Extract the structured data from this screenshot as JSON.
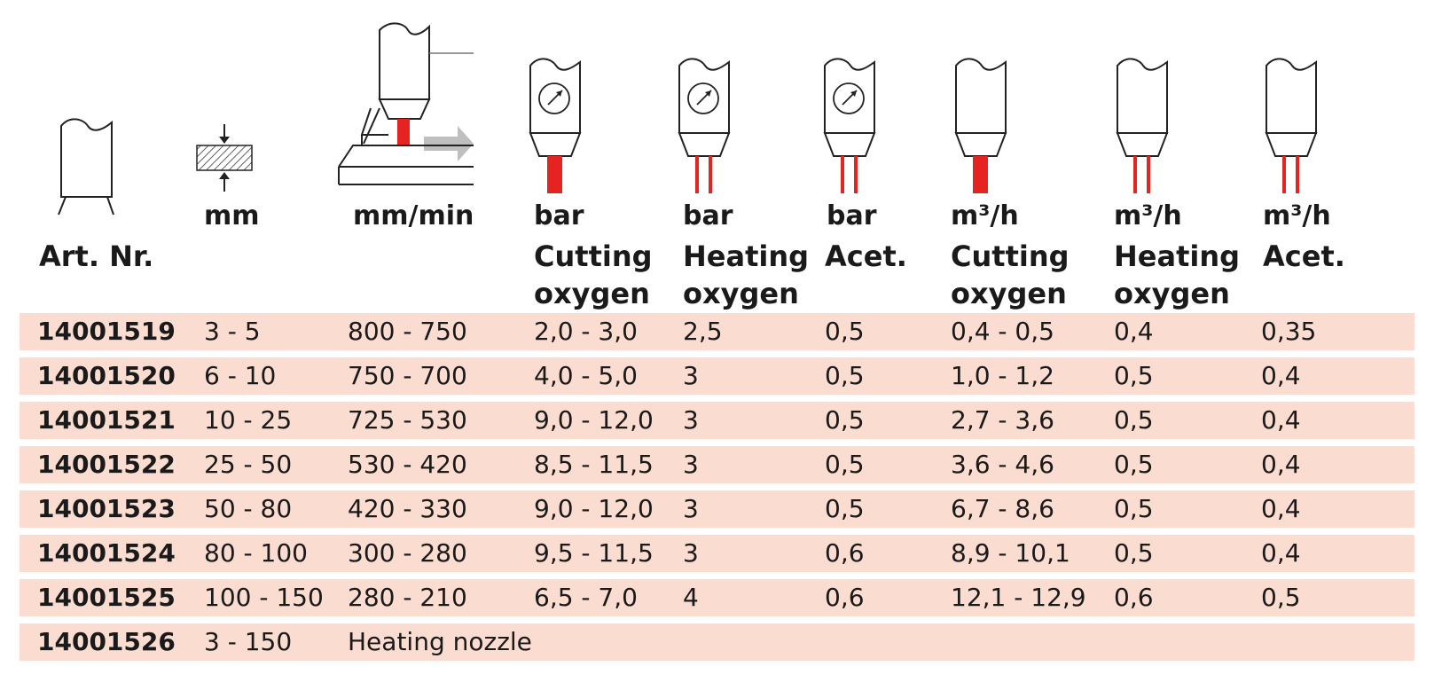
{
  "headers": {
    "thickness_unit": "mm",
    "speed_unit": "mm/min",
    "cutting_oxygen_bar": {
      "unit": "bar",
      "label_1": "Cutting",
      "label_2": "oxygen"
    },
    "heating_oxygen_bar": {
      "unit": "bar",
      "label_1": "Heating",
      "label_2": "oxygen"
    },
    "acetylene_bar": {
      "unit": "bar",
      "label_1": "Acet."
    },
    "cutting_oxygen_flow": {
      "unit": "m³/h",
      "label_1": "Cutting",
      "label_2": "oxygen"
    },
    "heating_oxygen_flow": {
      "unit": "m³/h",
      "label_1": "Heating",
      "label_2": "oxygen"
    },
    "acetylene_flow": {
      "unit": "m³/h",
      "label_1": "Acet."
    },
    "art_nr": "Art. Nr."
  },
  "icons": {
    "nozzle": "nozzle-icon",
    "thickness": "material-thickness-icon",
    "speed": "cutting-speed-icon",
    "gauge": "pressure-gauge-icon",
    "flame_color": "#e52421",
    "row_color": "#fbdcd0"
  },
  "rows": [
    {
      "art": "14001519",
      "thickness": "3 - 5",
      "speed": "800 - 750",
      "cut_bar": "2,0 - 3,0",
      "heat_bar": "2,5",
      "acet_bar": "0,5",
      "cut_flow": "0,4 - 0,5",
      "heat_flow": "0,4",
      "acet_flow": "0,35"
    },
    {
      "art": "14001520",
      "thickness": "6 - 10",
      "speed": "750 - 700",
      "cut_bar": "4,0 - 5,0",
      "heat_bar": "3",
      "acet_bar": "0,5",
      "cut_flow": "1,0 - 1,2",
      "heat_flow": "0,5",
      "acet_flow": "0,4"
    },
    {
      "art": "14001521",
      "thickness": "10 - 25",
      "speed": "725 - 530",
      "cut_bar": "9,0 - 12,0",
      "heat_bar": "3",
      "acet_bar": "0,5",
      "cut_flow": "2,7 - 3,6",
      "heat_flow": "0,5",
      "acet_flow": "0,4"
    },
    {
      "art": "14001522",
      "thickness": "25 - 50",
      "speed": "530 - 420",
      "cut_bar": "8,5 - 11,5",
      "heat_bar": "3",
      "acet_bar": "0,5",
      "cut_flow": "3,6 - 4,6",
      "heat_flow": "0,5",
      "acet_flow": "0,4"
    },
    {
      "art": "14001523",
      "thickness": "50 - 80",
      "speed": "420 - 330",
      "cut_bar": "9,0 - 12,0",
      "heat_bar": "3",
      "acet_bar": "0,5",
      "cut_flow": "6,7 - 8,6",
      "heat_flow": "0,5",
      "acet_flow": "0,4"
    },
    {
      "art": "14001524",
      "thickness": "80 - 100",
      "speed": "300 - 280",
      "cut_bar": "9,5 - 11,5",
      "heat_bar": "3",
      "acet_bar": "0,6",
      "cut_flow": "8,9 - 10,1",
      "heat_flow": "0,5",
      "acet_flow": "0,4"
    },
    {
      "art": "14001525",
      "thickness": "100 - 150",
      "speed": "280 - 210",
      "cut_bar": "6,5 - 7,0",
      "heat_bar": "4",
      "acet_bar": "0,6",
      "cut_flow": "12,1 - 12,9",
      "heat_flow": "0,6",
      "acet_flow": "0,5"
    },
    {
      "art": "14001526",
      "thickness": "3 - 150",
      "speed": "Heating nozzle",
      "cut_bar": "",
      "heat_bar": "",
      "acet_bar": "",
      "cut_flow": "",
      "heat_flow": "",
      "acet_flow": ""
    }
  ]
}
